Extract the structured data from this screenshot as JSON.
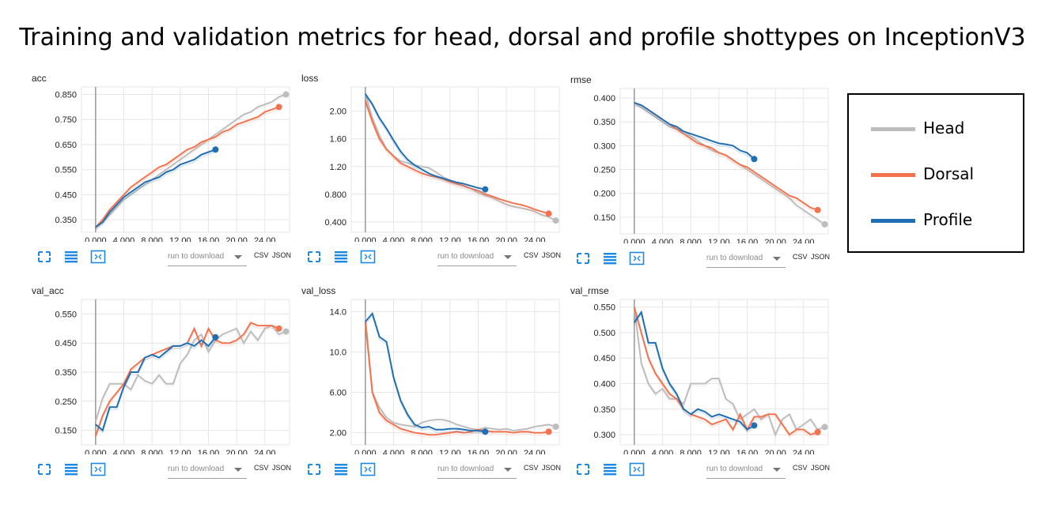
{
  "title": "Training and validation metrics for head, dorsal and profile shottypes on InceptionV3",
  "colors": {
    "head": "#bdbdbd",
    "dorsal": "#f4734f",
    "profile": "#1f6fb2"
  },
  "legend": [
    {
      "name": "Head",
      "color": "#bdbdbd"
    },
    {
      "name": "Dorsal",
      "color": "#f4734f"
    },
    {
      "name": "Profile",
      "color": "#1f6fb2"
    }
  ],
  "controls": {
    "icons": [
      "expand-icon",
      "list-icon",
      "fit-domain-icon"
    ],
    "download_placeholder": "run to download",
    "csv": "CSV",
    "json": "JSON"
  },
  "chart_data": [
    {
      "type": "line",
      "name": "acc",
      "x_ticks": [
        "0.000",
        "4.000",
        "8.000",
        "12.00",
        "16.00",
        "20.00",
        "24.00"
      ],
      "y_ticks": [
        "0.350",
        "0.450",
        "0.550",
        "0.650",
        "0.750",
        "0.850"
      ],
      "xlim": [
        -2,
        27.5
      ],
      "ylim": [
        0.3,
        0.88
      ],
      "series": [
        {
          "key": "head",
          "x": [
            0,
            1,
            2,
            3,
            4,
            5,
            6,
            7,
            8,
            9,
            10,
            11,
            12,
            13,
            14,
            15,
            16,
            17,
            18,
            19,
            20,
            21,
            22,
            23,
            24,
            25,
            26,
            27
          ],
          "y": [
            0.32,
            0.34,
            0.37,
            0.4,
            0.43,
            0.45,
            0.47,
            0.49,
            0.51,
            0.53,
            0.55,
            0.57,
            0.59,
            0.61,
            0.63,
            0.65,
            0.67,
            0.69,
            0.71,
            0.73,
            0.75,
            0.77,
            0.78,
            0.8,
            0.81,
            0.82,
            0.84,
            0.85
          ]
        },
        {
          "key": "dorsal",
          "x": [
            0,
            1,
            2,
            3,
            4,
            5,
            6,
            7,
            8,
            9,
            10,
            11,
            12,
            13,
            14,
            15,
            16,
            17,
            18,
            19,
            20,
            21,
            22,
            23,
            24,
            25,
            26
          ],
          "y": [
            0.32,
            0.35,
            0.39,
            0.42,
            0.45,
            0.48,
            0.5,
            0.52,
            0.54,
            0.56,
            0.57,
            0.59,
            0.61,
            0.63,
            0.64,
            0.66,
            0.67,
            0.68,
            0.7,
            0.71,
            0.73,
            0.74,
            0.75,
            0.76,
            0.78,
            0.79,
            0.8
          ]
        },
        {
          "key": "profile",
          "x": [
            0,
            1,
            2,
            3,
            4,
            5,
            6,
            7,
            8,
            9,
            10,
            11,
            12,
            13,
            14,
            15,
            16,
            17
          ],
          "y": [
            0.32,
            0.34,
            0.38,
            0.41,
            0.44,
            0.46,
            0.48,
            0.5,
            0.51,
            0.52,
            0.54,
            0.55,
            0.57,
            0.58,
            0.59,
            0.61,
            0.62,
            0.63
          ]
        }
      ]
    },
    {
      "type": "line",
      "name": "loss",
      "x_ticks": [
        "0.000",
        "4.000",
        "8.000",
        "12.00",
        "16.00",
        "20.00",
        "24.00"
      ],
      "y_ticks": [
        "0.400",
        "0.800",
        "1.20",
        "1.60",
        "2.00"
      ],
      "xlim": [
        -2,
        27.5
      ],
      "ylim": [
        0.25,
        2.35
      ],
      "series": [
        {
          "key": "head",
          "x": [
            0,
            1,
            2,
            3,
            4,
            5,
            6,
            7,
            8,
            9,
            10,
            11,
            12,
            13,
            14,
            15,
            16,
            17,
            18,
            19,
            20,
            21,
            22,
            23,
            24,
            25,
            26,
            27
          ],
          "y": [
            2.25,
            1.9,
            1.65,
            1.45,
            1.35,
            1.28,
            1.25,
            1.22,
            1.2,
            1.18,
            1.12,
            1.05,
            1.0,
            0.95,
            0.92,
            0.88,
            0.82,
            0.78,
            0.75,
            0.7,
            0.65,
            0.62,
            0.6,
            0.58,
            0.55,
            0.5,
            0.47,
            0.42
          ]
        },
        {
          "key": "dorsal",
          "x": [
            0,
            1,
            2,
            3,
            4,
            5,
            6,
            7,
            8,
            9,
            10,
            11,
            12,
            13,
            14,
            15,
            16,
            17,
            18,
            19,
            20,
            21,
            22,
            23,
            24,
            25,
            26
          ],
          "y": [
            2.15,
            1.85,
            1.6,
            1.45,
            1.35,
            1.25,
            1.2,
            1.15,
            1.1,
            1.07,
            1.05,
            1.02,
            0.98,
            0.95,
            0.92,
            0.88,
            0.85,
            0.8,
            0.77,
            0.73,
            0.7,
            0.67,
            0.65,
            0.62,
            0.58,
            0.55,
            0.52
          ]
        },
        {
          "key": "profile",
          "x": [
            0,
            1,
            2,
            3,
            4,
            5,
            6,
            7,
            8,
            9,
            10,
            11,
            12,
            13,
            14,
            15,
            16,
            17
          ],
          "y": [
            2.25,
            2.1,
            1.9,
            1.75,
            1.58,
            1.42,
            1.3,
            1.22,
            1.16,
            1.1,
            1.06,
            1.03,
            1.0,
            0.97,
            0.95,
            0.92,
            0.89,
            0.87
          ]
        }
      ]
    },
    {
      "type": "line",
      "name": "rmse",
      "x_ticks": [
        "0.000",
        "4.000",
        "8.000",
        "12.00",
        "16.00",
        "20.00",
        "24.00"
      ],
      "y_ticks": [
        "0.150",
        "0.200",
        "0.250",
        "0.300",
        "0.350",
        "0.400"
      ],
      "xlim": [
        -2,
        27.5
      ],
      "ylim": [
        0.115,
        0.42
      ],
      "series": [
        {
          "key": "head",
          "x": [
            0,
            1,
            2,
            3,
            4,
            5,
            6,
            7,
            8,
            9,
            10,
            11,
            12,
            13,
            14,
            15,
            16,
            17,
            18,
            19,
            20,
            21,
            22,
            23,
            24,
            25,
            26,
            27
          ],
          "y": [
            0.39,
            0.38,
            0.37,
            0.36,
            0.35,
            0.34,
            0.335,
            0.33,
            0.32,
            0.31,
            0.3,
            0.29,
            0.285,
            0.28,
            0.27,
            0.26,
            0.25,
            0.24,
            0.23,
            0.22,
            0.21,
            0.2,
            0.19,
            0.175,
            0.165,
            0.155,
            0.145,
            0.135
          ]
        },
        {
          "key": "dorsal",
          "x": [
            0,
            1,
            2,
            3,
            4,
            5,
            6,
            7,
            8,
            9,
            10,
            11,
            12,
            13,
            14,
            15,
            16,
            17,
            18,
            19,
            20,
            21,
            22,
            23,
            24,
            25,
            26
          ],
          "y": [
            0.39,
            0.385,
            0.375,
            0.365,
            0.355,
            0.345,
            0.335,
            0.325,
            0.315,
            0.305,
            0.3,
            0.295,
            0.285,
            0.28,
            0.27,
            0.26,
            0.255,
            0.245,
            0.235,
            0.225,
            0.215,
            0.205,
            0.195,
            0.19,
            0.18,
            0.17,
            0.165
          ]
        },
        {
          "key": "profile",
          "x": [
            0,
            1,
            2,
            3,
            4,
            5,
            6,
            7,
            8,
            9,
            10,
            11,
            12,
            13,
            14,
            15,
            16,
            17
          ],
          "y": [
            0.39,
            0.385,
            0.375,
            0.365,
            0.355,
            0.345,
            0.34,
            0.33,
            0.325,
            0.32,
            0.315,
            0.31,
            0.305,
            0.303,
            0.3,
            0.29,
            0.285,
            0.272
          ]
        }
      ]
    },
    {
      "type": "line",
      "name": "val_acc",
      "x_ticks": [
        "0.000",
        "4.000",
        "8.000",
        "12.00",
        "16.00",
        "20.00",
        "24.00"
      ],
      "y_ticks": [
        "0.150",
        "0.250",
        "0.350",
        "0.450",
        "0.550"
      ],
      "xlim": [
        -2,
        27.5
      ],
      "ylim": [
        0.1,
        0.6
      ],
      "series": [
        {
          "key": "head",
          "x": [
            0,
            1,
            2,
            3,
            4,
            5,
            6,
            7,
            8,
            9,
            10,
            11,
            12,
            13,
            14,
            15,
            16,
            17,
            18,
            19,
            20,
            21,
            22,
            23,
            24,
            25,
            26,
            27
          ],
          "y": [
            0.18,
            0.26,
            0.31,
            0.31,
            0.31,
            0.29,
            0.34,
            0.32,
            0.31,
            0.34,
            0.31,
            0.31,
            0.38,
            0.41,
            0.46,
            0.48,
            0.42,
            0.46,
            0.48,
            0.49,
            0.5,
            0.45,
            0.49,
            0.46,
            0.5,
            0.51,
            0.48,
            0.49
          ]
        },
        {
          "key": "dorsal",
          "x": [
            0,
            1,
            2,
            3,
            4,
            5,
            6,
            7,
            8,
            9,
            10,
            11,
            12,
            13,
            14,
            15,
            16,
            17,
            18,
            19,
            20,
            21,
            22,
            23,
            24,
            25,
            26
          ],
          "y": [
            0.13,
            0.2,
            0.25,
            0.28,
            0.31,
            0.36,
            0.38,
            0.4,
            0.41,
            0.42,
            0.43,
            0.44,
            0.44,
            0.45,
            0.5,
            0.44,
            0.5,
            0.46,
            0.45,
            0.45,
            0.46,
            0.48,
            0.52,
            0.51,
            0.51,
            0.51,
            0.5
          ]
        },
        {
          "key": "profile",
          "x": [
            0,
            1,
            2,
            3,
            4,
            5,
            6,
            7,
            8,
            9,
            10,
            11,
            12,
            13,
            14,
            15,
            16,
            17
          ],
          "y": [
            0.17,
            0.15,
            0.23,
            0.23,
            0.3,
            0.35,
            0.35,
            0.4,
            0.41,
            0.4,
            0.42,
            0.44,
            0.44,
            0.45,
            0.44,
            0.46,
            0.44,
            0.47
          ]
        }
      ]
    },
    {
      "type": "line",
      "name": "val_loss",
      "x_ticks": [
        "0.000",
        "4.000",
        "8.000",
        "12.00",
        "16.00",
        "20.00",
        "24.00"
      ],
      "y_ticks": [
        "2.00",
        "6.00",
        "10.0",
        "14.0"
      ],
      "xlim": [
        -2,
        27.5
      ],
      "ylim": [
        0.8,
        15.2
      ],
      "series": [
        {
          "key": "head",
          "x": [
            0,
            1,
            2,
            3,
            4,
            5,
            6,
            7,
            8,
            9,
            10,
            11,
            12,
            13,
            14,
            15,
            16,
            17,
            18,
            19,
            20,
            21,
            22,
            23,
            24,
            25,
            26,
            27
          ],
          "y": [
            13.5,
            6.0,
            4.5,
            3.5,
            3.0,
            2.8,
            2.7,
            2.6,
            3.0,
            3.2,
            3.3,
            3.3,
            3.1,
            2.8,
            2.6,
            2.4,
            2.3,
            2.5,
            2.4,
            2.3,
            2.4,
            2.2,
            2.3,
            2.4,
            2.6,
            2.7,
            2.8,
            2.6
          ]
        },
        {
          "key": "dorsal",
          "x": [
            0,
            1,
            2,
            3,
            4,
            5,
            6,
            7,
            8,
            9,
            10,
            11,
            12,
            13,
            14,
            15,
            16,
            17,
            18,
            19,
            20,
            21,
            22,
            23,
            24,
            25,
            26
          ],
          "y": [
            13.0,
            6.0,
            4.0,
            3.2,
            2.8,
            2.4,
            2.2,
            2.0,
            1.9,
            1.8,
            1.8,
            1.9,
            2.0,
            2.1,
            2.0,
            2.1,
            2.3,
            2.2,
            2.1,
            2.1,
            2.1,
            2.0,
            2.1,
            2.1,
            2.0,
            2.0,
            2.1
          ]
        },
        {
          "key": "profile",
          "x": [
            0,
            1,
            2,
            3,
            4,
            5,
            6,
            7,
            8,
            9,
            10,
            11,
            12,
            13,
            14,
            15,
            16,
            17
          ],
          "y": [
            13.0,
            13.8,
            11.5,
            11.0,
            7.5,
            5.2,
            3.8,
            2.8,
            2.5,
            2.6,
            2.3,
            2.3,
            2.4,
            2.4,
            2.3,
            2.2,
            2.2,
            2.1
          ]
        }
      ]
    },
    {
      "type": "line",
      "name": "val_rmse",
      "x_ticks": [
        "0.000",
        "4.000",
        "8.000",
        "12.00",
        "16.00",
        "20.00",
        "24.00"
      ],
      "y_ticks": [
        "0.300",
        "0.350",
        "0.400",
        "0.450",
        "0.500",
        "0.550"
      ],
      "xlim": [
        -2,
        27.5
      ],
      "ylim": [
        0.28,
        0.565
      ],
      "series": [
        {
          "key": "head",
          "x": [
            0,
            1,
            2,
            3,
            4,
            5,
            6,
            7,
            8,
            9,
            10,
            11,
            12,
            13,
            14,
            15,
            16,
            17,
            18,
            19,
            20,
            21,
            22,
            23,
            24,
            25,
            26,
            27
          ],
          "y": [
            0.55,
            0.44,
            0.4,
            0.38,
            0.39,
            0.37,
            0.37,
            0.36,
            0.4,
            0.4,
            0.4,
            0.41,
            0.41,
            0.37,
            0.36,
            0.33,
            0.34,
            0.35,
            0.33,
            0.34,
            0.3,
            0.33,
            0.34,
            0.31,
            0.32,
            0.33,
            0.31,
            0.315
          ]
        },
        {
          "key": "dorsal",
          "x": [
            0,
            1,
            2,
            3,
            4,
            5,
            6,
            7,
            8,
            9,
            10,
            11,
            12,
            13,
            14,
            15,
            16,
            17,
            18,
            19,
            20,
            21,
            22,
            23,
            24,
            25,
            26
          ],
          "y": [
            0.55,
            0.5,
            0.45,
            0.42,
            0.4,
            0.38,
            0.37,
            0.35,
            0.34,
            0.335,
            0.33,
            0.32,
            0.325,
            0.33,
            0.31,
            0.34,
            0.31,
            0.335,
            0.335,
            0.34,
            0.34,
            0.32,
            0.3,
            0.31,
            0.31,
            0.3,
            0.305
          ]
        },
        {
          "key": "profile",
          "x": [
            0,
            1,
            2,
            3,
            4,
            5,
            6,
            7,
            8,
            9,
            10,
            11,
            12,
            13,
            14,
            15,
            16,
            17
          ],
          "y": [
            0.52,
            0.54,
            0.48,
            0.48,
            0.43,
            0.4,
            0.38,
            0.35,
            0.34,
            0.35,
            0.345,
            0.335,
            0.34,
            0.335,
            0.33,
            0.325,
            0.31,
            0.318
          ]
        }
      ]
    }
  ]
}
